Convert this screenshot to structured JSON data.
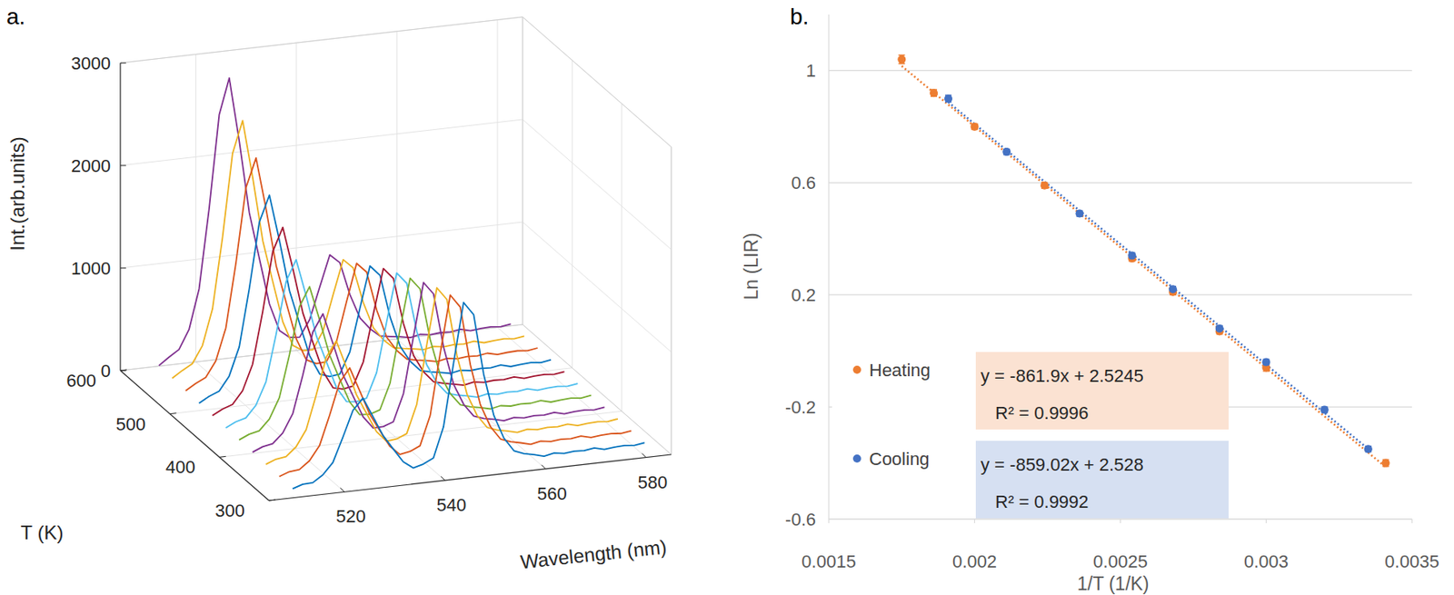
{
  "chart_data": [
    {
      "type": "waterfall",
      "panel_label": "a.",
      "xlabel": "Wavelength (nm)",
      "ylabel": "Int.(arb.units)",
      "zlabel": "T (K)",
      "xlim": [
        505,
        585
      ],
      "xticks": [
        520,
        540,
        560,
        580
      ],
      "ylim": [
        0,
        3000
      ],
      "yticks": [
        0,
        1000,
        2000,
        3000
      ],
      "zlim": [
        300,
        600
      ],
      "zticks": [
        300,
        400,
        500,
        600
      ],
      "grid": true,
      "x": [
        510,
        512,
        514,
        516,
        518,
        520,
        522,
        524,
        526,
        528,
        530,
        532,
        534,
        536,
        538,
        540,
        542,
        544,
        546,
        548,
        550,
        552,
        554,
        556,
        558,
        560,
        562,
        564,
        566,
        568,
        570,
        572,
        574,
        576,
        578,
        580
      ],
      "series": [
        {
          "z": 303,
          "color": "#0072bd",
          "values": [
            75,
            106,
            111,
            175,
            285,
            521,
            772,
            880,
            685,
            491,
            350,
            214,
            142,
            169,
            218,
            509,
            1121,
            1700,
            1570,
            977,
            566,
            334,
            198,
            159,
            137,
            111,
            131,
            116,
            126,
            121,
            136,
            111,
            121,
            126,
            116,
            131
          ]
        },
        {
          "z": 330,
          "color": "#d95319",
          "values": [
            80,
            115,
            125,
            200,
            335,
            620,
            930,
            1060,
            825,
            585,
            415,
            250,
            160,
            178,
            223,
            505,
            1097,
            1658,
            1530,
            955,
            555,
            330,
            198,
            160,
            139,
            113,
            133,
            118,
            128,
            123,
            138,
            113,
            123,
            128,
            118,
            133
          ]
        },
        {
          "z": 357,
          "color": "#edb120",
          "values": [
            85,
            123,
            137,
            221,
            377,
            703,
            1062,
            1210,
            942,
            663,
            469,
            280,
            175,
            186,
            227,
            500,
            1072,
            1615,
            1490,
            932,
            543,
            326,
            197,
            161,
            140,
            115,
            135,
            120,
            130,
            125,
            140,
            115,
            125,
            130,
            120,
            135
          ]
        },
        {
          "z": 384,
          "color": "#7e2f8e",
          "values": [
            89,
            130,
            149,
            242,
            419,
            785,
            1194,
            1360,
            1059,
            741,
            523,
            310,
            190,
            192,
            228,
            490,
            1035,
            1552,
            1431,
            898,
            525,
            318,
            194,
            160,
            140,
            115,
            135,
            120,
            130,
            125,
            140,
            115,
            125,
            130,
            120,
            135
          ]
        },
        {
          "z": 411,
          "color": "#77ac30",
          "values": [
            94,
            138,
            161,
            263,
            461,
            868,
            1326,
            1510,
            1176,
            819,
            577,
            340,
            205,
            199,
            230,
            478,
            991,
            1480,
            1364,
            859,
            504,
            309,
            191,
            159,
            140,
            116,
            136,
            121,
            131,
            126,
            141,
            116,
            126,
            131,
            121,
            136
          ]
        },
        {
          "z": 438,
          "color": "#4dbeee",
          "values": [
            98,
            145,
            173,
            284,
            503,
            950,
            1458,
            1660,
            1293,
            897,
            631,
            370,
            220,
            206,
            231,
            468,
            954,
            1417,
            1305,
            825,
            486,
            302,
            188,
            159,
            140,
            117,
            137,
            122,
            132,
            127,
            142,
            117,
            127,
            132,
            122,
            137
          ]
        },
        {
          "z": 465,
          "color": "#a2142f",
          "values": [
            104,
            155,
            189,
            312,
            559,
            1060,
            1634,
            1860,
            1449,
            1001,
            703,
            410,
            240,
            216,
            235,
            458,
            912,
            1347,
            1239,
            787,
            466,
            294,
            186,
            159,
            141,
            119,
            139,
            124,
            134,
            129,
            144,
            119,
            129,
            134,
            124,
            139
          ]
        },
        {
          "z": 492,
          "color": "#0072bd",
          "values": [
            110,
            165,
            205,
            340,
            615,
            1170,
            1810,
            2060,
            1605,
            1105,
            775,
            450,
            260,
            225,
            237,
            443,
            858,
            1257,
            1155,
            738,
            440,
            283,
            182,
            158,
            141,
            120,
            140,
            125,
            135,
            130,
            145,
            120,
            130,
            135,
            125,
            140
          ]
        },
        {
          "z": 519,
          "color": "#d95319",
          "values": [
            118,
            178,
            225,
            375,
            685,
            1308,
            2030,
            2310,
            1800,
            1235,
            865,
            500,
            285,
            237,
            242,
            430,
            806,
            1169,
            1073,
            690,
            415,
            273,
            179,
            158,
            142,
            122,
            142,
            127,
            137,
            132,
            147,
            122,
            132,
            137,
            127,
            142
          ]
        },
        {
          "z": 546,
          "color": "#edb120",
          "values": [
            125,
            190,
            245,
            410,
            755,
            1445,
            2250,
            2560,
            1995,
            1365,
            955,
            550,
            310,
            249,
            247,
            420,
            760,
            1091,
            999,
            648,
            393,
            264,
            177,
            158,
            143,
            124,
            144,
            129,
            139,
            134,
            149,
            124,
            134,
            139,
            129,
            144
          ]
        },
        {
          "z": 573,
          "color": "#7e2f8e",
          "values": [
            134,
            205,
            269,
            452,
            839,
            1610,
            2514,
            2860,
            2229,
            1521,
            1063,
            610,
            340,
            264,
            255,
            415,
            723,
            1024,
            936,
            613,
            375,
            258,
            176,
            160,
            146,
            127,
            147,
            132,
            142,
            137,
            152,
            127,
            137,
            142,
            132,
            147
          ]
        }
      ]
    },
    {
      "type": "scatter",
      "panel_label": "b.",
      "xlabel": "1/T (1/K)",
      "ylabel": "Ln (LIR)",
      "xlim": [
        0.0015,
        0.0035
      ],
      "xticks": [
        0.0015,
        0.002,
        0.0025,
        0.003,
        0.0035
      ],
      "ylim": [
        -0.6,
        1.2
      ],
      "yticks": [
        -0.6,
        -0.2,
        0.2,
        0.6,
        1
      ],
      "grid": true,
      "legend": "bottom",
      "series": [
        {
          "name": "Heating",
          "color": "#ed7d31",
          "marker": "circle",
          "line_style": "dotted",
          "x": [
            0.00175,
            0.00186,
            0.002,
            0.00224,
            0.00254,
            0.00268,
            0.00284,
            0.003,
            0.00341
          ],
          "values": [
            1.04,
            0.92,
            0.8,
            0.59,
            0.33,
            0.21,
            0.07,
            -0.06,
            -0.4
          ],
          "errors": [
            0.015,
            0.012,
            0.01,
            0.01,
            0.01,
            0.01,
            0.01,
            0.012,
            0.012
          ],
          "fit": {
            "slope": -861.9,
            "intercept": 2.5245,
            "equation": "y = -861.9x + 2.5245",
            "r_squared": "R² = 0.9996"
          }
        },
        {
          "name": "Cooling",
          "color": "#4472c4",
          "marker": "circle",
          "line_style": "dotted",
          "x": [
            0.00191,
            0.00211,
            0.00236,
            0.00254,
            0.00268,
            0.00284,
            0.003,
            0.0032,
            0.00335
          ],
          "values": [
            0.9,
            0.71,
            0.49,
            0.34,
            0.22,
            0.08,
            -0.04,
            -0.21,
            -0.35
          ],
          "errors": [
            0.012,
            0.01,
            0.01,
            0.01,
            0.01,
            0.01,
            0.01,
            0.01,
            0.01
          ],
          "fit": {
            "slope": -859.02,
            "intercept": 2.528,
            "equation": "y = -859.02x + 2.528",
            "r_squared": "R² = 0.9992"
          }
        }
      ]
    }
  ]
}
